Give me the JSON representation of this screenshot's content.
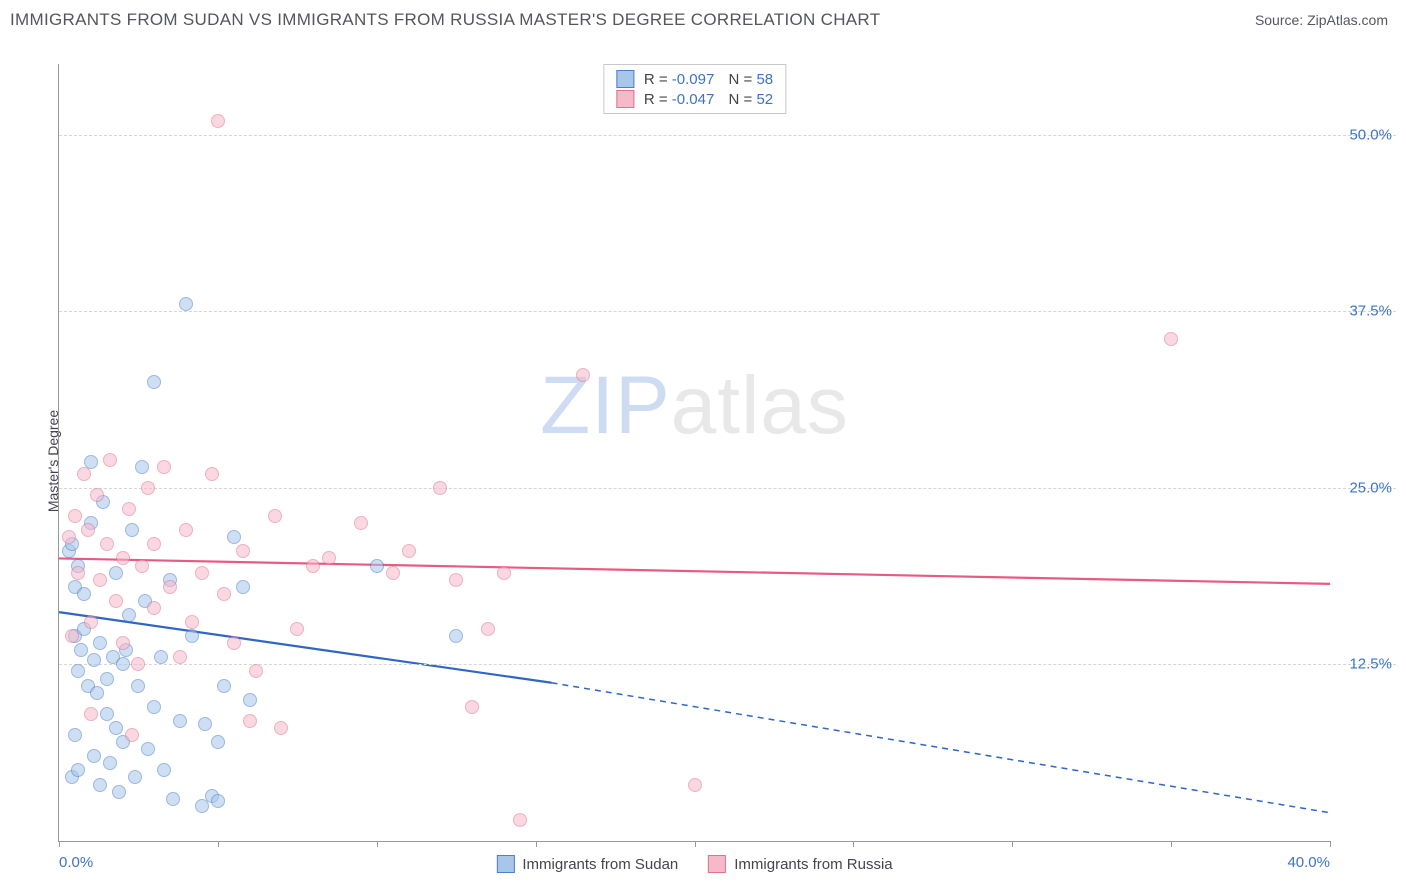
{
  "header": {
    "title": "IMMIGRANTS FROM SUDAN VS IMMIGRANTS FROM RUSSIA MASTER'S DEGREE CORRELATION CHART",
    "source_prefix": "Source: ",
    "source": "ZipAtlas.com"
  },
  "chart": {
    "type": "scatter",
    "y_label": "Master's Degree",
    "x_domain": [
      0,
      40
    ],
    "y_domain": [
      0,
      55
    ],
    "x_ticks": [
      0,
      5,
      10,
      15,
      20,
      25,
      30,
      35,
      40
    ],
    "x_tick_labels": {
      "0": "0.0%",
      "40": "40.0%"
    },
    "y_gridlines": [
      12.5,
      25.0,
      37.5,
      50.0
    ],
    "y_tick_labels": [
      "12.5%",
      "25.0%",
      "37.5%",
      "50.0%"
    ],
    "background_color": "#ffffff",
    "grid_color": "#d5d5d5",
    "tick_label_color": "#3b74c6",
    "point_radius": 7,
    "series": [
      {
        "id": "sudan",
        "label": "Immigrants from Sudan",
        "fill": "#a8c6ea",
        "fill_opacity": 0.55,
        "stroke": "#4a7fc9",
        "line_color": "#2f66c4",
        "line_width": 2.2,
        "R": "-0.097",
        "N": "58",
        "reg_start": [
          0,
          16.2
        ],
        "reg_solid_end": [
          15.5,
          11.2
        ],
        "reg_dash_end": [
          40,
          2.0
        ],
        "points": [
          [
            0.3,
            20.5
          ],
          [
            0.4,
            21.0
          ],
          [
            0.5,
            18.0
          ],
          [
            0.5,
            14.5
          ],
          [
            0.6,
            19.5
          ],
          [
            0.6,
            12.0
          ],
          [
            0.7,
            13.5
          ],
          [
            0.8,
            17.5
          ],
          [
            0.8,
            15.0
          ],
          [
            0.9,
            11.0
          ],
          [
            1.0,
            22.5
          ],
          [
            1.0,
            26.8
          ],
          [
            1.1,
            12.8
          ],
          [
            1.2,
            10.5
          ],
          [
            1.3,
            14.0
          ],
          [
            1.4,
            24.0
          ],
          [
            1.5,
            9.0
          ],
          [
            1.5,
            11.5
          ],
          [
            1.6,
            5.5
          ],
          [
            1.7,
            13.0
          ],
          [
            1.8,
            8.0
          ],
          [
            1.8,
            19.0
          ],
          [
            2.0,
            7.0
          ],
          [
            2.0,
            12.5
          ],
          [
            2.2,
            16.0
          ],
          [
            2.3,
            22.0
          ],
          [
            2.4,
            4.5
          ],
          [
            2.5,
            11.0
          ],
          [
            2.6,
            26.5
          ],
          [
            2.8,
            6.5
          ],
          [
            3.0,
            9.5
          ],
          [
            3.0,
            32.5
          ],
          [
            3.2,
            13.0
          ],
          [
            3.5,
            18.5
          ],
          [
            3.6,
            3.0
          ],
          [
            3.8,
            8.5
          ],
          [
            4.0,
            38.0
          ],
          [
            4.2,
            14.5
          ],
          [
            4.5,
            2.5
          ],
          [
            4.6,
            8.3
          ],
          [
            4.8,
            3.2
          ],
          [
            5.0,
            7.0
          ],
          [
            5.0,
            2.8
          ],
          [
            5.2,
            11.0
          ],
          [
            5.5,
            21.5
          ],
          [
            5.8,
            18.0
          ],
          [
            6.0,
            10.0
          ],
          [
            10.0,
            19.5
          ],
          [
            12.5,
            14.5
          ],
          [
            0.4,
            4.5
          ],
          [
            0.6,
            5.0
          ],
          [
            1.1,
            6.0
          ],
          [
            1.3,
            4.0
          ],
          [
            1.9,
            3.5
          ],
          [
            2.1,
            13.5
          ],
          [
            2.7,
            17.0
          ],
          [
            3.3,
            5.0
          ],
          [
            0.5,
            7.5
          ]
        ]
      },
      {
        "id": "russia",
        "label": "Immigrants from Russia",
        "fill": "#f5b9ca",
        "fill_opacity": 0.55,
        "stroke": "#e0718f",
        "line_color": "#e85a82",
        "line_width": 2.2,
        "R": "-0.047",
        "N": "52",
        "reg_start": [
          0,
          20.0
        ],
        "reg_solid_end": [
          40,
          18.2
        ],
        "reg_dash_end": null,
        "points": [
          [
            0.3,
            21.5
          ],
          [
            0.5,
            23.0
          ],
          [
            0.6,
            19.0
          ],
          [
            0.8,
            26.0
          ],
          [
            0.9,
            22.0
          ],
          [
            1.0,
            15.5
          ],
          [
            1.2,
            24.5
          ],
          [
            1.3,
            18.5
          ],
          [
            1.5,
            21.0
          ],
          [
            1.6,
            27.0
          ],
          [
            1.8,
            17.0
          ],
          [
            2.0,
            20.0
          ],
          [
            2.0,
            14.0
          ],
          [
            2.2,
            23.5
          ],
          [
            2.5,
            12.5
          ],
          [
            2.6,
            19.5
          ],
          [
            2.8,
            25.0
          ],
          [
            3.0,
            21.0
          ],
          [
            3.0,
            16.5
          ],
          [
            3.3,
            26.5
          ],
          [
            3.5,
            18.0
          ],
          [
            3.8,
            13.0
          ],
          [
            4.0,
            22.0
          ],
          [
            4.2,
            15.5
          ],
          [
            4.5,
            19.0
          ],
          [
            4.8,
            26.0
          ],
          [
            5.0,
            51.0
          ],
          [
            5.2,
            17.5
          ],
          [
            5.5,
            14.0
          ],
          [
            5.8,
            20.5
          ],
          [
            6.0,
            8.5
          ],
          [
            6.2,
            12.0
          ],
          [
            6.8,
            23.0
          ],
          [
            7.0,
            8.0
          ],
          [
            7.5,
            15.0
          ],
          [
            8.0,
            19.5
          ],
          [
            8.5,
            20.0
          ],
          [
            9.5,
            22.5
          ],
          [
            10.5,
            19.0
          ],
          [
            11.0,
            20.5
          ],
          [
            12.0,
            25.0
          ],
          [
            12.5,
            18.5
          ],
          [
            13.0,
            9.5
          ],
          [
            13.5,
            15.0
          ],
          [
            14.0,
            19.0
          ],
          [
            14.5,
            1.5
          ],
          [
            16.5,
            33.0
          ],
          [
            20.0,
            4.0
          ],
          [
            35.0,
            35.5
          ],
          [
            0.4,
            14.5
          ],
          [
            1.0,
            9.0
          ],
          [
            2.3,
            7.5
          ]
        ]
      }
    ],
    "legend_bottom": [
      "Immigrants from Sudan",
      "Immigrants from Russia"
    ],
    "watermark": {
      "part1": "ZIP",
      "part2": "atlas"
    }
  }
}
